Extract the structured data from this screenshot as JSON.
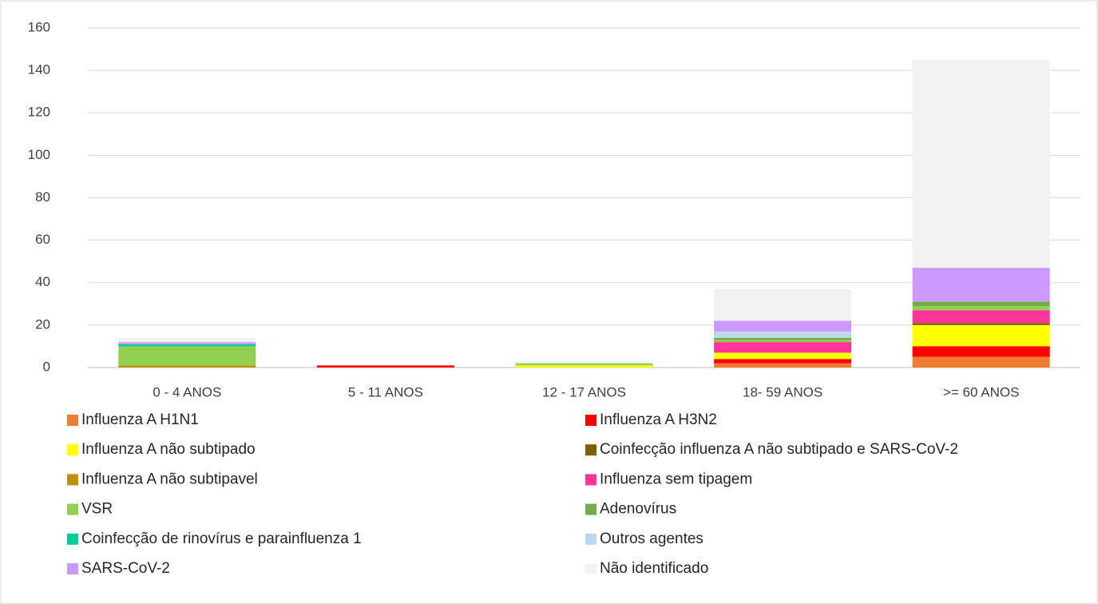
{
  "chart_data": {
    "type": "stacked_bar",
    "categories": [
      "0 - 4 ANOS",
      "5 - 11 ANOS",
      "12 - 17 ANOS",
      "18- 59 ANOS",
      ">= 60 ANOS"
    ],
    "series": [
      {
        "name": "Influenza A H1N1",
        "color": "#ED7D31",
        "values": [
          0,
          0,
          0,
          2,
          5
        ]
      },
      {
        "name": "Influenza A H3N2",
        "color": "#FF0000",
        "values": [
          0,
          1,
          0,
          2,
          5
        ]
      },
      {
        "name": "Influenza A não subtipado",
        "color": "#FFFF00",
        "values": [
          0,
          0,
          1,
          3,
          10
        ]
      },
      {
        "name": "Coinfecção influenza A não subtipado e SARS-CoV-2",
        "color": "#7F6000",
        "values": [
          0,
          0,
          0,
          0,
          1
        ]
      },
      {
        "name": "Influenza A não subtipavel",
        "color": "#BF9000",
        "values": [
          1,
          0,
          0,
          0,
          0
        ]
      },
      {
        "name": "Influenza sem tipagem",
        "color": "#FF3399",
        "values": [
          0,
          0,
          0,
          5,
          6
        ]
      },
      {
        "name": "VSR",
        "color": "#92D050",
        "values": [
          9,
          0,
          1,
          1,
          2
        ]
      },
      {
        "name": "Adenovírus",
        "color": "#70AD47",
        "values": [
          0,
          0,
          0,
          1,
          2
        ]
      },
      {
        "name": "Coinfecção de rinovírus e parainfluenza 1",
        "color": "#00CC99",
        "values": [
          1,
          0,
          0,
          0,
          0
        ]
      },
      {
        "name": "Outros agentes",
        "color": "#BDD7EE",
        "values": [
          0,
          0,
          0,
          3,
          0
        ]
      },
      {
        "name": "SARS-CoV-2",
        "color": "#CC99FF",
        "values": [
          1,
          0,
          0,
          5,
          16
        ]
      },
      {
        "name": "Não identificado",
        "color": "#F2F2F2",
        "values": [
          2,
          0,
          1,
          15,
          98
        ]
      }
    ],
    "ylim": [
      0,
      160
    ],
    "yticks": [
      0,
      20,
      40,
      60,
      80,
      100,
      120,
      140,
      160
    ],
    "grid": true
  }
}
